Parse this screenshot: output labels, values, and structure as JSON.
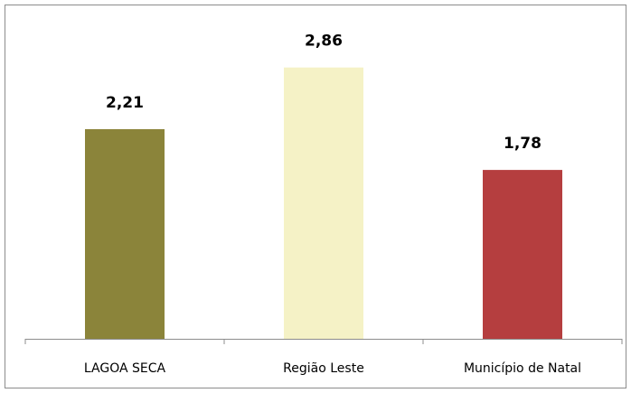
{
  "chart_data": {
    "type": "bar",
    "categories": [
      "LAGOA SECA",
      "Região Leste",
      "Município de Natal"
    ],
    "values": [
      2.21,
      2.86,
      1.78
    ],
    "value_labels": [
      "2,21",
      "2,86",
      "1,78"
    ],
    "colors": [
      "#8b843a",
      "#f5f2c6",
      "#b53e3f"
    ],
    "ylim": [
      0,
      3.2
    ]
  }
}
